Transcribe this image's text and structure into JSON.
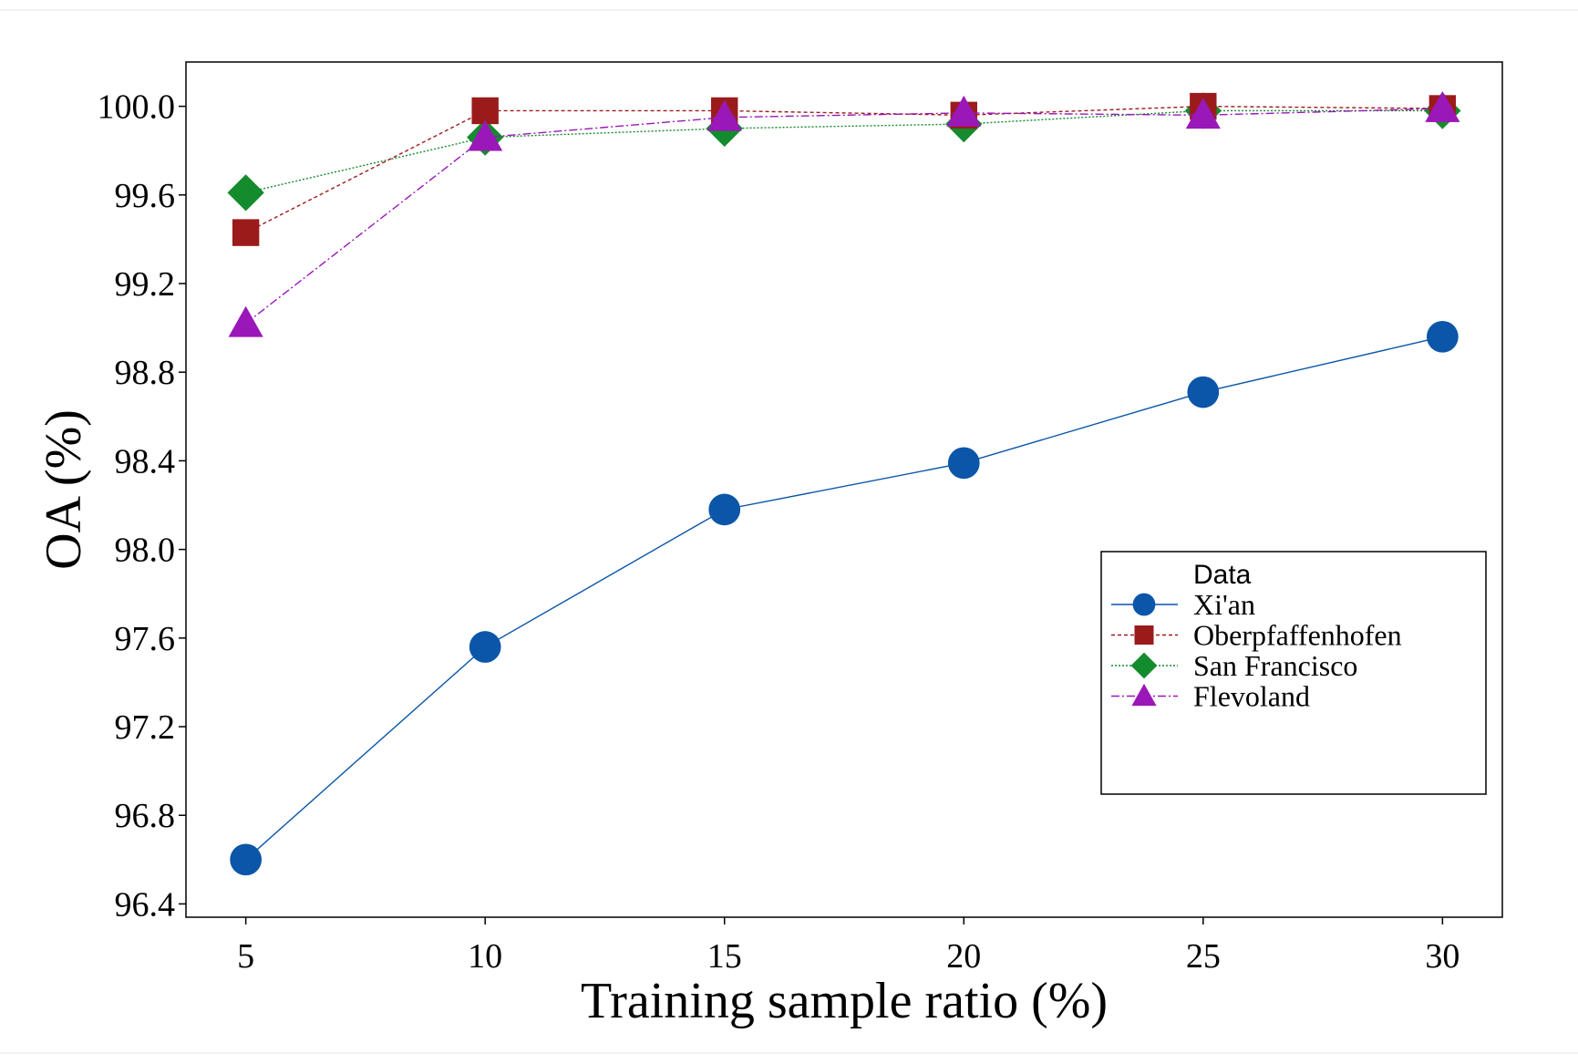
{
  "chart_data": {
    "type": "line",
    "xlabel": "Training sample ratio (%)",
    "ylabel": "OA (%)",
    "x": [
      5,
      10,
      15,
      20,
      25,
      30
    ],
    "xticks": [
      "5",
      "10",
      "15",
      "20",
      "25",
      "30"
    ],
    "xlim": [
      3.75,
      31.25
    ],
    "yticks": [
      "96.4",
      "96.8",
      "97.2",
      "97.6",
      "98.0",
      "98.4",
      "98.8",
      "99.2",
      "99.6",
      "100.0"
    ],
    "ytick_values": [
      96.4,
      96.8,
      97.2,
      97.6,
      98.0,
      98.4,
      98.8,
      99.2,
      99.6,
      100.0
    ],
    "ylim": [
      96.34,
      100.2
    ],
    "grid": false,
    "legend": {
      "title": "Data",
      "position": "center-right"
    },
    "series": [
      {
        "name": "Xi'an",
        "marker": "circle",
        "line_style": "solid",
        "color": "#0b56a8",
        "values": [
          96.6,
          97.56,
          98.18,
          98.39,
          98.71,
          98.96
        ]
      },
      {
        "name": "Oberpfaffenhofen",
        "marker": "square",
        "line_style": "dashed",
        "color": "#9b1b1b",
        "values": [
          99.43,
          99.98,
          99.98,
          99.96,
          100.0,
          99.99
        ]
      },
      {
        "name": "San Francisco",
        "marker": "diamond",
        "line_style": "dotted",
        "color": "#148b2c",
        "values": [
          99.61,
          99.86,
          99.9,
          99.92,
          99.98,
          99.98
        ]
      },
      {
        "name": "Flevoland",
        "marker": "triangle",
        "line_style": "dashdot",
        "color": "#9a18b8",
        "values": [
          99.02,
          99.86,
          99.95,
          99.97,
          99.96,
          99.99
        ]
      }
    ]
  }
}
